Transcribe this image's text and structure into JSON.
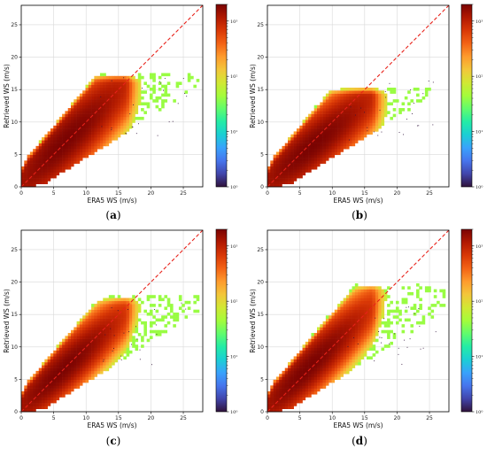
{
  "chart_data": [
    {
      "type": "heatmap",
      "panel_label": "(a)",
      "xlabel": "ERA5 WS (m/s)",
      "ylabel": "Retrieved WS (m/s)",
      "xlim": [
        0,
        28
      ],
      "ylim": [
        0,
        28
      ],
      "xticks": [
        0,
        5,
        10,
        15,
        20,
        25
      ],
      "yticks": [
        0,
        5,
        10,
        15,
        20,
        25
      ],
      "grid": true,
      "reference_line": {
        "style": "dashed",
        "color": "#e8221a",
        "from": [
          0,
          0
        ],
        "to": [
          28,
          28
        ]
      },
      "colorbar": {
        "scale": "log",
        "range": [
          1,
          2000
        ],
        "ticks": [
          1,
          10,
          100,
          1000
        ],
        "tick_labels": [
          "10⁰",
          "10¹",
          "10²",
          "10³"
        ]
      },
      "density_core": {
        "x_peak": 6.5,
        "y_peak": 7.5,
        "x_extent": [
          0,
          27
        ],
        "y_max_at_x": 16.5,
        "spread": 2.8,
        "tail_slope": 0.95
      }
    },
    {
      "type": "heatmap",
      "panel_label": "(b)",
      "xlabel": "ERA5 WS (m/s)",
      "ylabel": "Retrieved WS (m/s)",
      "xlim": [
        0,
        28
      ],
      "ylim": [
        0,
        28
      ],
      "xticks": [
        0,
        5,
        10,
        15,
        20,
        25
      ],
      "yticks": [
        0,
        5,
        10,
        15,
        20,
        25
      ],
      "grid": true,
      "reference_line": {
        "style": "dashed",
        "color": "#e8221a",
        "from": [
          0,
          0
        ],
        "to": [
          28,
          28
        ]
      },
      "colorbar": {
        "scale": "log",
        "range": [
          1,
          2000
        ],
        "ticks": [
          1,
          10,
          100,
          1000
        ],
        "tick_labels": [
          "10⁰",
          "10¹",
          "10²",
          "10³"
        ]
      },
      "density_core": {
        "x_peak": 6.5,
        "y_peak": 6.5,
        "x_extent": [
          0,
          27
        ],
        "y_max_at_x": 14.5,
        "spread": 2.5,
        "tail_slope": 0.82
      }
    },
    {
      "type": "heatmap",
      "panel_label": "(c)",
      "xlabel": "ERA5 WS (m/s)",
      "ylabel": "Retrieved WS (m/s)",
      "xlim": [
        0,
        28
      ],
      "ylim": [
        0,
        28
      ],
      "xticks": [
        0,
        5,
        10,
        15,
        20,
        25
      ],
      "yticks": [
        0,
        5,
        10,
        15,
        20,
        25
      ],
      "grid": true,
      "reference_line": {
        "style": "dashed",
        "color": "#e8221a",
        "from": [
          0,
          0
        ],
        "to": [
          28,
          28
        ]
      },
      "colorbar": {
        "scale": "log",
        "range": [
          1,
          2000
        ],
        "ticks": [
          1,
          10,
          100,
          1000
        ],
        "tick_labels": [
          "10⁰",
          "10¹",
          "10²",
          "10³"
        ]
      },
      "density_core": {
        "x_peak": 6.0,
        "y_peak": 6.5,
        "x_extent": [
          0,
          27
        ],
        "y_max_at_x": 17.0,
        "spread": 2.2,
        "tail_slope": 0.92
      }
    },
    {
      "type": "heatmap",
      "panel_label": "(d)",
      "xlabel": "ERA5 WS (m/s)",
      "ylabel": "Retrieved WS (m/s)",
      "xlim": [
        0,
        28
      ],
      "ylim": [
        0,
        28
      ],
      "xticks": [
        0,
        5,
        10,
        15,
        20,
        25
      ],
      "yticks": [
        0,
        5,
        10,
        15,
        20,
        25
      ],
      "grid": true,
      "reference_line": {
        "style": "dashed",
        "color": "#e8221a",
        "from": [
          0,
          0
        ],
        "to": [
          28,
          28
        ]
      },
      "colorbar": {
        "scale": "log",
        "range": [
          1,
          2000
        ],
        "ticks": [
          1,
          10,
          100,
          1000
        ],
        "tick_labels": [
          "10⁰",
          "10¹",
          "10²",
          "10³"
        ]
      },
      "density_core": {
        "x_peak": 6.0,
        "y_peak": 6.5,
        "x_extent": [
          0,
          27
        ],
        "y_max_at_x": 19.0,
        "spread": 2.3,
        "tail_slope": 0.98
      }
    }
  ],
  "colors": {
    "colormap": [
      "#30123b",
      "#4145ab",
      "#4675ed",
      "#39a2fc",
      "#1bcfd4",
      "#24eca6",
      "#61fc6c",
      "#a4fc3b",
      "#d1e834",
      "#f3c63a",
      "#fe9b2d",
      "#f36315",
      "#d93806",
      "#b11901",
      "#7a0402"
    ],
    "reference_line": "#e8221a",
    "grid": "#d9d9d9"
  }
}
